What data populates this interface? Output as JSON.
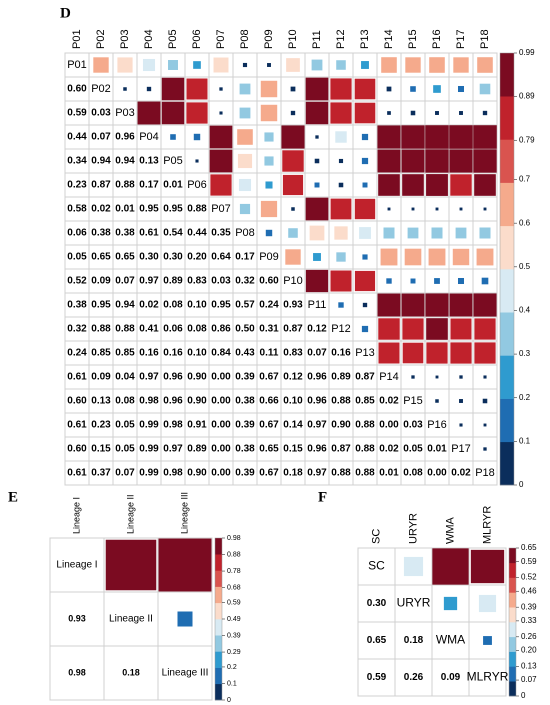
{
  "chart_data": [
    {
      "type": "correlogram",
      "panel": "D",
      "variables": [
        "P01",
        "P02",
        "P03",
        "P04",
        "P05",
        "P06",
        "P07",
        "P08",
        "P09",
        "P10",
        "P11",
        "P12",
        "P13",
        "P14",
        "P15",
        "P16",
        "P17",
        "P18"
      ],
      "values": [
        [
          0.6
        ],
        [
          0.59,
          0.03
        ],
        [
          0.44,
          0.07,
          0.96
        ],
        [
          0.34,
          0.94,
          0.94,
          0.13
        ],
        [
          0.23,
          0.87,
          0.88,
          0.17,
          0.01
        ],
        [
          0.58,
          0.02,
          0.01,
          0.95,
          0.95,
          0.88
        ],
        [
          0.06,
          0.38,
          0.38,
          0.61,
          0.54,
          0.44,
          0.35
        ],
        [
          0.05,
          0.65,
          0.65,
          0.3,
          0.3,
          0.2,
          0.64,
          0.17
        ],
        [
          0.52,
          0.09,
          0.07,
          0.97,
          0.89,
          0.83,
          0.03,
          0.32,
          0.6
        ],
        [
          0.38,
          0.95,
          0.94,
          0.02,
          0.08,
          0.1,
          0.95,
          0.57,
          0.24,
          0.93
        ],
        [
          0.32,
          0.88,
          0.88,
          0.41,
          0.06,
          0.08,
          0.86,
          0.5,
          0.31,
          0.87,
          0.12
        ],
        [
          0.24,
          0.85,
          0.85,
          0.16,
          0.16,
          0.1,
          0.84,
          0.43,
          0.11,
          0.83,
          0.07,
          0.16
        ],
        [
          0.61,
          0.09,
          0.04,
          0.97,
          0.96,
          0.9,
          0.0,
          0.39,
          0.67,
          0.12,
          0.96,
          0.89,
          0.87
        ],
        [
          0.6,
          0.13,
          0.08,
          0.98,
          0.96,
          0.9,
          0.0,
          0.38,
          0.66,
          0.1,
          0.96,
          0.88,
          0.85,
          0.02
        ],
        [
          0.61,
          0.23,
          0.05,
          0.99,
          0.98,
          0.91,
          0.0,
          0.39,
          0.67,
          0.14,
          0.97,
          0.9,
          0.88,
          0.0,
          0.03
        ],
        [
          0.6,
          0.15,
          0.05,
          0.99,
          0.97,
          0.89,
          0.0,
          0.38,
          0.65,
          0.15,
          0.96,
          0.87,
          0.88,
          0.02,
          0.05,
          0.01
        ],
        [
          0.61,
          0.37,
          0.07,
          0.99,
          0.98,
          0.9,
          0.0,
          0.39,
          0.67,
          0.18,
          0.97,
          0.88,
          0.88,
          0.01,
          0.08,
          0.0,
          0.02
        ]
      ],
      "value_labels": [
        [
          "0.60"
        ],
        [
          "0.59",
          "0.03"
        ],
        [
          "0.44",
          "0.07",
          "0.96"
        ],
        [
          "0.34",
          "0.94",
          "0.94",
          "0.13"
        ],
        [
          "0.23",
          "0.87",
          "0.88",
          "0.17",
          "0.01"
        ],
        [
          "0.58",
          "0.02",
          "0.01",
          "0.95",
          "0.95",
          "0.88"
        ],
        [
          "0.06",
          "0.38",
          "0.38",
          "0.61",
          "0.54",
          "0.44",
          "0.35"
        ],
        [
          "0.05",
          "0.65",
          "0.65",
          "0.30",
          "0.30",
          "0.20",
          "0.64",
          "0.17"
        ],
        [
          "0.52",
          "0.09",
          "0.07",
          "0.97",
          "0.89",
          "0.83",
          "0.03",
          "0.32",
          "0.60"
        ],
        [
          "0.38",
          "0.95",
          "0.94",
          "0.02",
          "0.08",
          "0.10",
          "0.95",
          "0.57",
          "0.24",
          "0.93"
        ],
        [
          "0.32",
          "0.88",
          "0.88",
          "0.41",
          "0.06",
          "0.08",
          "0.86",
          "0.50",
          "0.31",
          "0.87",
          "0.12"
        ],
        [
          "0.24",
          "0.85",
          "0.85",
          "0.16",
          "0.16",
          "0.10",
          "0.84",
          "0.43",
          "0.11",
          "0.83",
          "0.07",
          "0.16"
        ],
        [
          "0.61",
          "0.09",
          "0.04",
          "0.97",
          "0.96",
          "0.90",
          "0.00",
          "0.39",
          "0.67",
          "0.12",
          "0.96",
          "0.89",
          "0.87"
        ],
        [
          "0.60",
          "0.13",
          "0.08",
          "0.98",
          "0.96",
          "0.90",
          "0.00",
          "0.38",
          "0.66",
          "0.10",
          "0.96",
          "0.88",
          "0.85",
          "0.02"
        ],
        [
          "0.61",
          "0.23",
          "0.05",
          "0.99",
          "0.98",
          "0.91",
          "0.00",
          "0.39",
          "0.67",
          "0.14",
          "0.97",
          "0.90",
          "0.88",
          "0.00",
          "0.03"
        ],
        [
          "0.60",
          "0.15",
          "0.05",
          "0.99",
          "0.97",
          "0.89",
          "0.00",
          "0.38",
          "0.65",
          "0.15",
          "0.96",
          "0.87",
          "0.88",
          "0.02",
          "0.05",
          "0.01"
        ],
        [
          "0.61",
          "0.37",
          "0.07",
          "0.99",
          "0.98",
          "0.90",
          "0.00",
          "0.39",
          "0.67",
          "0.18",
          "0.97",
          "0.88",
          "0.88",
          "0.01",
          "0.08",
          "0.00",
          "0.02"
        ]
      ],
      "clim": [
        0,
        0.99
      ],
      "cticks": [
        0,
        0.1,
        0.2,
        0.3,
        0.4,
        0.5,
        0.6,
        0.7,
        0.79,
        0.89,
        0.99
      ],
      "colors": [
        "#0b2e5c",
        "#1f6db2",
        "#2f9bcf",
        "#92c9e1",
        "#d8eaf3",
        "#fbdccb",
        "#f5aa8c",
        "#d9544f",
        "#c0222c",
        "#7b0b21"
      ]
    },
    {
      "type": "correlogram",
      "panel": "E",
      "variables": [
        "Lineage I",
        "Lineage II",
        "Lineage III"
      ],
      "values": [
        [
          0.93
        ],
        [
          0.98,
          0.18
        ]
      ],
      "value_labels": [
        [
          "0.93"
        ],
        [
          "0.98",
          "0.18"
        ]
      ],
      "clim": [
        0,
        0.98
      ],
      "cticks": [
        0,
        0.1,
        0.2,
        0.29,
        0.39,
        0.49,
        0.59,
        0.68,
        0.78,
        0.88,
        0.98
      ],
      "colors": [
        "#0b2e5c",
        "#1f6db2",
        "#2f9bcf",
        "#92c9e1",
        "#d8eaf3",
        "#fbdccb",
        "#f5aa8c",
        "#d9544f",
        "#c0222c",
        "#7b0b21"
      ]
    },
    {
      "type": "correlogram",
      "panel": "F",
      "variables": [
        "SC",
        "URYR",
        "WMA",
        "MLRYR"
      ],
      "values": [
        [
          0.3
        ],
        [
          0.65,
          0.18
        ],
        [
          0.59,
          0.26,
          0.09
        ]
      ],
      "value_labels": [
        [
          "0.30"
        ],
        [
          "0.65",
          "0.18"
        ],
        [
          "0.59",
          "0.26",
          "0.09"
        ]
      ],
      "clim": [
        0,
        0.65
      ],
      "cticks": [
        0,
        0.07,
        0.13,
        {
          "value": 0.2,
          "label": "0.20"
        },
        0.26,
        0.33,
        0.39,
        0.46,
        0.52,
        0.59,
        0.65
      ],
      "colors": [
        "#0b2e5c",
        "#1f6db2",
        "#2f9bcf",
        "#92c9e1",
        "#d8eaf3",
        "#fbdccb",
        "#f5aa8c",
        "#d9544f",
        "#c0222c",
        "#7b0b21"
      ]
    }
  ]
}
